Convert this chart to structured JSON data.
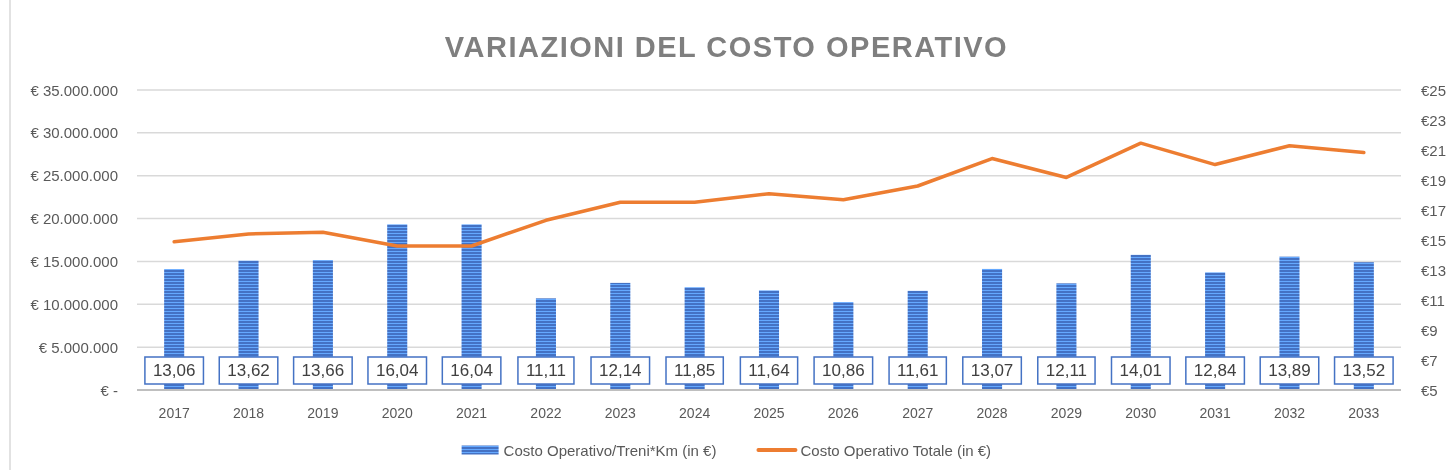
{
  "chart_data": {
    "type": "bar",
    "title": "VARIAZIONI DEL COSTO OPERATIVO",
    "categories": [
      "2017",
      "2018",
      "2019",
      "2020",
      "2021",
      "2022",
      "2023",
      "2024",
      "2025",
      "2026",
      "2027",
      "2028",
      "2029",
      "2030",
      "2031",
      "2032",
      "2033"
    ],
    "series": [
      {
        "name": "Costo Operativo/Treni*Km (in €)",
        "axis": "y2",
        "color": "#4472c4",
        "values": [
          13.06,
          13.62,
          13.66,
          16.04,
          16.04,
          11.11,
          12.14,
          11.85,
          11.64,
          10.86,
          11.61,
          13.07,
          12.11,
          14.01,
          12.84,
          13.89,
          13.52
        ],
        "value_labels": [
          "13,06",
          "13,62",
          "13,66",
          "16,04",
          "16,04",
          "11,11",
          "12,14",
          "11,85",
          "11,64",
          "10,86",
          "11,61",
          "13,07",
          "12,11",
          "14,01",
          "12,84",
          "13,89",
          "13,52"
        ]
      },
      {
        "name": "Costo Operativo Totale (in €)",
        "type": "line",
        "color": "#ed7d31",
        "values": [
          17300000,
          18200000,
          18400000,
          16800000,
          16800000,
          19800000,
          21900000,
          21900000,
          22900000,
          22200000,
          23800000,
          27000000,
          24800000,
          28800000,
          26300000,
          28500000,
          27700000
        ]
      }
    ],
    "ylim": [
      0,
      35000000
    ],
    "yticks": [
      {
        "value": 0,
        "label": "€ -"
      },
      {
        "value": 5000000,
        "label": "€ 5.000.000"
      },
      {
        "value": 10000000,
        "label": "€ 10.000.000"
      },
      {
        "value": 15000000,
        "label": "€ 15.000.000"
      },
      {
        "value": 20000000,
        "label": "€ 20.000.000"
      },
      {
        "value": 25000000,
        "label": "€ 25.000.000"
      },
      {
        "value": 30000000,
        "label": "€ 30.000.000"
      },
      {
        "value": 35000000,
        "label": "€ 35.000.000"
      }
    ],
    "y2lim": [
      5,
      25
    ],
    "y2ticks": [
      {
        "value": 5,
        "label": "€5"
      },
      {
        "value": 7,
        "label": "€7"
      },
      {
        "value": 9,
        "label": "€9"
      },
      {
        "value": 11,
        "label": "€11"
      },
      {
        "value": 13,
        "label": "€13"
      },
      {
        "value": 15,
        "label": "€15"
      },
      {
        "value": 17,
        "label": "€17"
      },
      {
        "value": 19,
        "label": "€19"
      },
      {
        "value": 21,
        "label": "€21"
      },
      {
        "value": 23,
        "label": "€23"
      },
      {
        "value": 25,
        "label": "€25"
      }
    ],
    "grid": "y",
    "legend": "bottom"
  }
}
